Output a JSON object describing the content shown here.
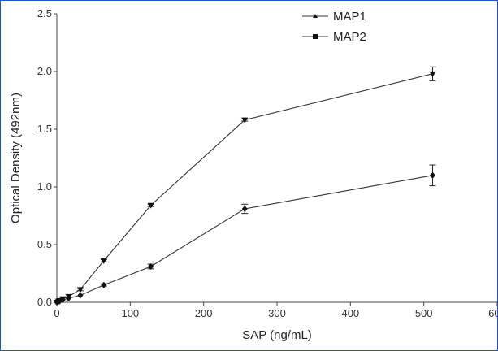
{
  "chart_data": {
    "type": "line",
    "xlabel": "SAP (ng/mL)",
    "ylabel": "Optical Density  (492nm)",
    "xlim": [
      0,
      600
    ],
    "ylim": [
      0,
      2.5
    ],
    "xticks": [
      "0",
      "100",
      "200",
      "300",
      "400",
      "500",
      "600"
    ],
    "yticks": [
      "0.0",
      "0.5",
      "1.0",
      "1.5",
      "2.0",
      "2.5"
    ],
    "grid": false,
    "legend_position": "top-right",
    "series": [
      {
        "name": "MAP1",
        "marker": "diamond",
        "x": [
          0,
          2,
          4,
          8,
          16,
          32,
          64,
          128,
          256,
          512
        ],
        "y": [
          0.0,
          0.005,
          0.01,
          0.02,
          0.035,
          0.06,
          0.15,
          0.31,
          0.81,
          1.1
        ],
        "err": [
          0,
          0,
          0,
          0,
          0,
          0,
          0.01,
          0.02,
          0.04,
          0.09
        ]
      },
      {
        "name": "MAP2",
        "marker": "triangle-down",
        "x": [
          0,
          2,
          4,
          8,
          16,
          32,
          64,
          128,
          256,
          512
        ],
        "y": [
          0.0,
          0.01,
          0.015,
          0.03,
          0.05,
          0.11,
          0.36,
          0.84,
          1.58,
          1.98
        ],
        "err": [
          0,
          0,
          0,
          0,
          0,
          0.01,
          0.01,
          0.01,
          0.01,
          0.06
        ]
      }
    ]
  }
}
